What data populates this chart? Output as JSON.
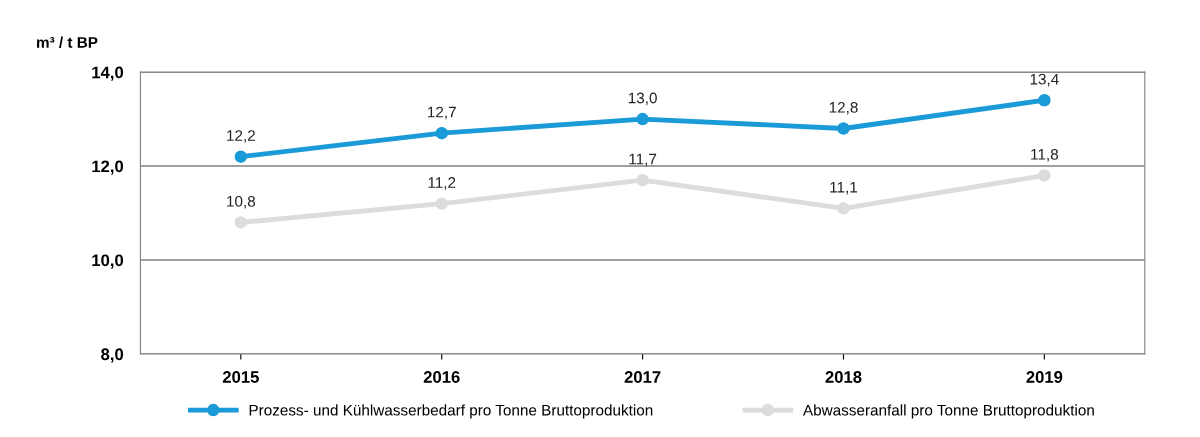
{
  "chart_data": {
    "type": "line",
    "ylabel": "m³ / t BP",
    "categories": [
      "2015",
      "2016",
      "2017",
      "2018",
      "2019"
    ],
    "series": [
      {
        "name": "Prozess- und Kühlwasserbedarf pro Tonne Bruttoproduktion",
        "color": "#1a9ad6",
        "values": [
          12.2,
          12.7,
          13.0,
          12.8,
          13.4
        ],
        "value_labels": [
          "12,2",
          "12,7",
          "13,0",
          "12,8",
          "13,4"
        ]
      },
      {
        "name": "Abwasseranfall pro Tonne Bruttoproduktion",
        "color": "#dcdcdc",
        "values": [
          10.8,
          11.2,
          11.7,
          11.1,
          11.8
        ],
        "value_labels": [
          "10,8",
          "11,2",
          "11,7",
          "11,1",
          "11,8"
        ]
      }
    ],
    "ylim": [
      8,
      14
    ],
    "yticks": [
      {
        "value": 8,
        "label": "8,0"
      },
      {
        "value": 10,
        "label": "10,0"
      },
      {
        "value": 12,
        "label": "12,0"
      },
      {
        "value": 14,
        "label": "14,0"
      }
    ],
    "grid": "y",
    "legend": "bottom",
    "marker": "circle",
    "line_style": "solid"
  }
}
